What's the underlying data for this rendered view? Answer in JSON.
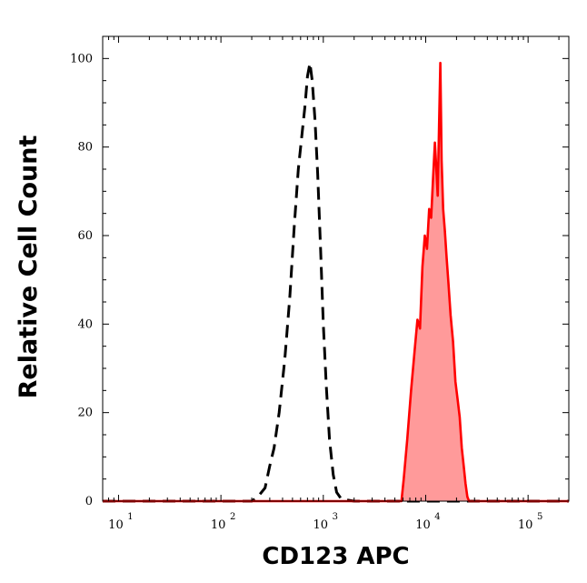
{
  "chart_data": {
    "type": "area",
    "title": "",
    "xlabel": "CD123 APC",
    "ylabel": "Relative Cell Count",
    "x_scale": "log",
    "xlim": [
      7,
      250000
    ],
    "ylim": [
      0,
      105
    ],
    "y_ticks": [
      0,
      20,
      40,
      60,
      80,
      100
    ],
    "x_ticks": [
      {
        "value": 10,
        "base": "10",
        "exp": "1"
      },
      {
        "value": 100,
        "base": "10",
        "exp": "2"
      },
      {
        "value": 1000,
        "base": "10",
        "exp": "3"
      },
      {
        "value": 10000,
        "base": "10",
        "exp": "4"
      },
      {
        "value": 100000,
        "base": "10",
        "exp": "5"
      }
    ],
    "grid": false,
    "series": [
      {
        "style": "dashed-black",
        "color": "#000000",
        "points": [
          [
            7,
            0
          ],
          [
            200,
            0
          ],
          [
            230,
            1
          ],
          [
            270,
            3
          ],
          [
            300,
            8
          ],
          [
            330,
            12
          ],
          [
            370,
            20
          ],
          [
            420,
            32
          ],
          [
            470,
            46
          ],
          [
            520,
            62
          ],
          [
            570,
            75
          ],
          [
            620,
            83
          ],
          [
            660,
            89
          ],
          [
            700,
            96
          ],
          [
            740,
            99
          ],
          [
            780,
            95
          ],
          [
            830,
            86
          ],
          [
            880,
            74
          ],
          [
            940,
            57
          ],
          [
            1000,
            40
          ],
          [
            1070,
            26
          ],
          [
            1150,
            14
          ],
          [
            1250,
            6
          ],
          [
            1350,
            2
          ],
          [
            1500,
            0.5
          ],
          [
            2000,
            0
          ],
          [
            250000,
            0
          ]
        ]
      },
      {
        "style": "filled-red",
        "color": "#ff0000",
        "fill": "#ff9a9a",
        "points": [
          [
            7,
            0
          ],
          [
            5800,
            0
          ],
          [
            6100,
            5
          ],
          [
            6600,
            14
          ],
          [
            7200,
            25
          ],
          [
            7800,
            34
          ],
          [
            8300,
            41
          ],
          [
            8800,
            39
          ],
          [
            9300,
            53
          ],
          [
            9800,
            60
          ],
          [
            10300,
            57
          ],
          [
            10800,
            66
          ],
          [
            11300,
            64
          ],
          [
            11800,
            73
          ],
          [
            12300,
            81
          ],
          [
            12700,
            75
          ],
          [
            13100,
            69
          ],
          [
            13500,
            85
          ],
          [
            13900,
            99
          ],
          [
            14300,
            77
          ],
          [
            14800,
            66
          ],
          [
            15400,
            61
          ],
          [
            16000,
            55
          ],
          [
            16700,
            49
          ],
          [
            17500,
            42
          ],
          [
            18500,
            36
          ],
          [
            19500,
            27
          ],
          [
            20500,
            23
          ],
          [
            21500,
            19
          ],
          [
            22500,
            12
          ],
          [
            23500,
            8
          ],
          [
            24500,
            4
          ],
          [
            25500,
            1
          ],
          [
            26500,
            0
          ],
          [
            250000,
            0
          ]
        ]
      }
    ]
  }
}
